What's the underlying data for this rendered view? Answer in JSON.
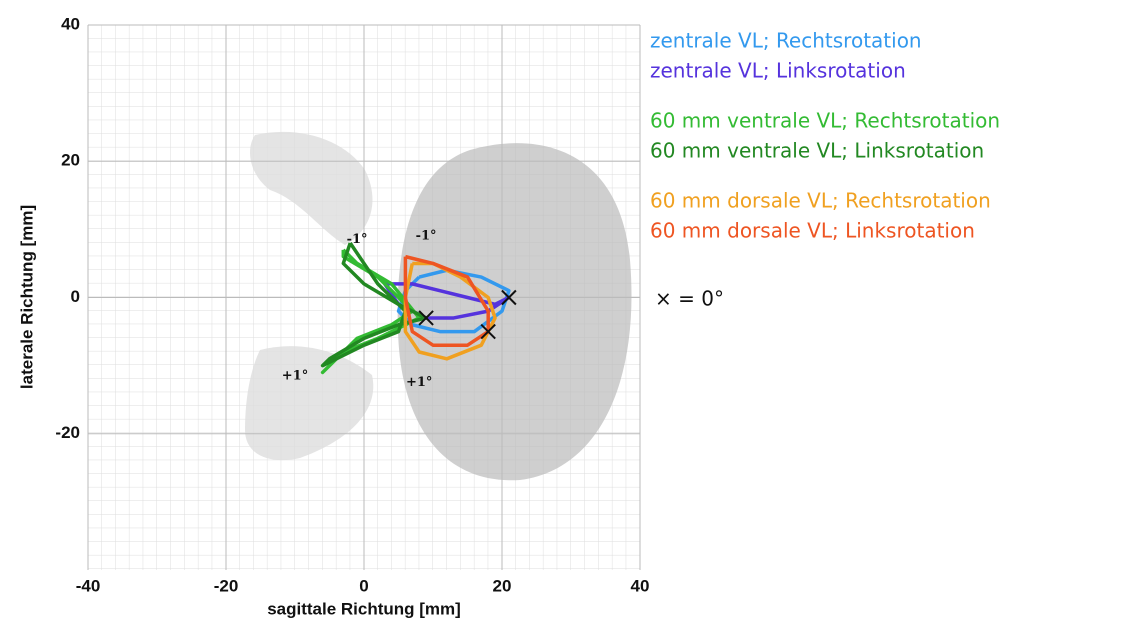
{
  "chart_data": {
    "type": "line",
    "xlabel": "sagittale Richtung [mm]",
    "ylabel": "laterale Richtung [mm]",
    "xlim": [
      -40,
      40
    ],
    "ylim": [
      -40,
      40
    ],
    "xticks": [
      -40,
      -20,
      0,
      20,
      40
    ],
    "yticks": [
      -20,
      0,
      20,
      40
    ],
    "grid": true,
    "series": [
      {
        "name": "zentrale VL; Rechtsrotation",
        "color": "#3399ee",
        "x": [
          8,
          12,
          17,
          21,
          20,
          16,
          11,
          7,
          5,
          6,
          8
        ],
        "y": [
          3,
          4,
          3,
          1,
          -2,
          -5,
          -5,
          -4,
          -2,
          1,
          3
        ]
      },
      {
        "name": "zentrale VL; Linksrotation",
        "color": "#5533dd",
        "x": [
          3,
          7,
          11,
          15,
          19,
          21,
          18,
          13,
          9,
          5,
          3
        ],
        "y": [
          2,
          2,
          1,
          0,
          -1,
          0,
          -2,
          -3,
          -3,
          -1,
          2
        ]
      },
      {
        "name": "60 mm ventrale VL; Rechtsrotation",
        "color": "#33bb33",
        "x": [
          -3,
          -1,
          4,
          8,
          6,
          2,
          -3,
          -6,
          -5,
          -1,
          4,
          7,
          5,
          2,
          -3,
          -3
        ],
        "y": [
          7,
          5,
          2,
          -3,
          -4,
          -6,
          -8,
          -11,
          -10,
          -6,
          -4,
          -2,
          0,
          3,
          6,
          7
        ]
      },
      {
        "name": "60 mm ventrale VL; Linksrotation",
        "color": "#228822",
        "x": [
          -2,
          -3,
          0,
          5,
          9,
          5,
          0,
          -5,
          -6,
          -4,
          0,
          5,
          6,
          2,
          -2
        ],
        "y": [
          8,
          5,
          2,
          -1,
          -3,
          -4,
          -6,
          -9,
          -10,
          -9,
          -7,
          -5,
          -2,
          2,
          8
        ]
      },
      {
        "name": "60 mm dorsale VL; Rechtsrotation",
        "color": "#f0a020",
        "x": [
          7,
          10,
          14,
          18,
          19,
          17,
          12,
          8,
          6,
          6,
          7
        ],
        "y": [
          5,
          5,
          3,
          0,
          -3,
          -7,
          -9,
          -8,
          -5,
          0,
          5
        ]
      },
      {
        "name": "60 mm dorsale VL; Linksrotation",
        "color": "#ee5522",
        "x": [
          6,
          10,
          15,
          18,
          18,
          15,
          10,
          7,
          6,
          6
        ],
        "y": [
          6,
          5,
          3,
          -2,
          -5,
          -7,
          -7,
          -5,
          0,
          6
        ]
      }
    ],
    "zero_markers": {
      "x": [
        9,
        21,
        18
      ],
      "y": [
        -3,
        0,
        -5
      ]
    },
    "marker_legend": "× = 0°",
    "annotations": [
      {
        "text": "-1°",
        "x": -1,
        "y": 8.5
      },
      {
        "text": "-1°",
        "x": 9,
        "y": 9
      },
      {
        "text": "+1°",
        "x": -10,
        "y": -11.5
      },
      {
        "text": "+1°",
        "x": 8,
        "y": -12.5
      }
    ]
  }
}
